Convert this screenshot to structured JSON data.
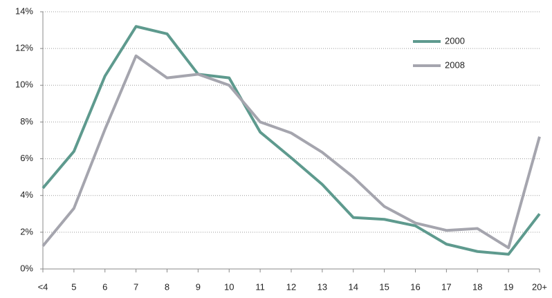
{
  "chart_data": {
    "type": "line",
    "categories": [
      "<4",
      "5",
      "6",
      "7",
      "8",
      "9",
      "10",
      "11",
      "12",
      "13",
      "14",
      "15",
      "16",
      "17",
      "18",
      "19",
      "20+"
    ],
    "series": [
      {
        "name": "2000",
        "color": "#5e9a8e",
        "values": [
          4.4,
          6.4,
          10.5,
          13.2,
          12.8,
          10.6,
          10.4,
          7.45,
          6.05,
          4.6,
          2.8,
          2.7,
          2.35,
          1.35,
          0.95,
          0.8,
          3.0
        ]
      },
      {
        "name": "2008",
        "color": "#a5a5ae",
        "values": [
          1.25,
          3.3,
          7.6,
          11.6,
          10.4,
          10.6,
          10.0,
          8.0,
          7.4,
          6.35,
          5.0,
          3.4,
          2.5,
          2.1,
          2.2,
          1.15,
          7.2
        ]
      }
    ],
    "ylim": [
      0,
      14
    ],
    "yticks": [
      {
        "value": 0,
        "label": "0%"
      },
      {
        "value": 2,
        "label": "2%"
      },
      {
        "value": 4,
        "label": "4%"
      },
      {
        "value": 6,
        "label": "6%"
      },
      {
        "value": 8,
        "label": "8%"
      },
      {
        "value": 10,
        "label": "10%"
      },
      {
        "value": 12,
        "label": "12%"
      },
      {
        "value": 14,
        "label": "14%"
      }
    ],
    "grid": true,
    "legend": "upper right"
  }
}
